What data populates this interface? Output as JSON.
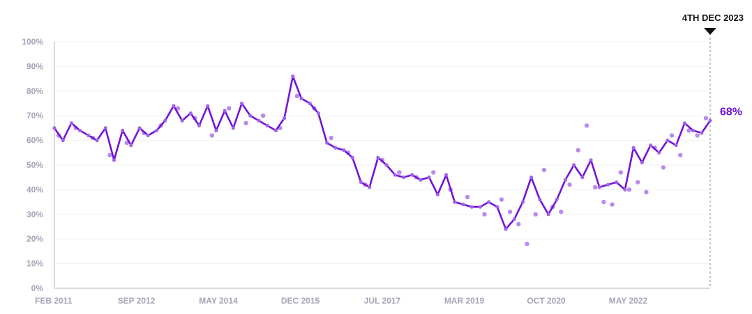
{
  "chart_data": {
    "type": "line",
    "title": "",
    "xlabel": "",
    "ylabel": "",
    "x_ticks": [
      "FEB 2011",
      "SEP 2012",
      "MAY 2014",
      "DEC 2015",
      "JUL 2017",
      "MAR 2019",
      "OCT 2020",
      "MAY 2022"
    ],
    "y_ticks": [
      "0%",
      "10%",
      "20%",
      "30%",
      "40%",
      "50%",
      "60%",
      "70%",
      "80%",
      "90%",
      "100%"
    ],
    "xlim": [
      "2011-02",
      "2023-12"
    ],
    "ylim": [
      0,
      100
    ],
    "grid": true,
    "marker": {
      "label": "4TH DEC 2023",
      "date": "2023-12"
    },
    "end_label": "68%",
    "colors": {
      "line": "#7312d9",
      "points": "#a064e6",
      "axis_text": "#a7a3b8"
    },
    "series": [
      {
        "style": "line",
        "x": [
          "2011-02",
          "2011-04",
          "2011-06",
          "2011-08",
          "2011-10",
          "2011-12",
          "2012-02",
          "2012-04",
          "2012-06",
          "2012-08",
          "2012-10",
          "2012-12",
          "2013-02",
          "2013-04",
          "2013-06",
          "2013-08",
          "2013-10",
          "2013-12",
          "2014-02",
          "2014-04",
          "2014-06",
          "2014-08",
          "2014-10",
          "2014-12",
          "2015-02",
          "2015-04",
          "2015-06",
          "2015-08",
          "2015-10",
          "2015-12",
          "2016-02",
          "2016-04",
          "2016-06",
          "2016-08",
          "2016-10",
          "2016-12",
          "2017-02",
          "2017-04",
          "2017-06",
          "2017-08",
          "2017-10",
          "2017-12",
          "2018-02",
          "2018-04",
          "2018-06",
          "2018-08",
          "2018-10",
          "2018-12",
          "2019-02",
          "2019-04",
          "2019-06",
          "2019-08",
          "2019-10",
          "2019-12",
          "2020-02",
          "2020-04",
          "2020-06",
          "2020-08",
          "2020-10",
          "2020-12",
          "2021-02",
          "2021-04",
          "2021-06",
          "2021-08",
          "2021-10",
          "2021-12",
          "2022-02",
          "2022-04",
          "2022-06",
          "2022-08",
          "2022-10",
          "2022-12",
          "2023-02",
          "2023-04",
          "2023-06",
          "2023-08",
          "2023-10",
          "2023-12"
        ],
        "y": [
          65,
          60,
          67,
          64,
          62,
          60,
          65,
          52,
          64,
          58,
          65,
          62,
          64,
          68,
          74,
          68,
          71,
          66,
          74,
          64,
          72,
          65,
          75,
          70,
          68,
          66,
          64,
          69,
          86,
          77,
          75,
          71,
          59,
          57,
          56,
          53,
          43,
          41,
          53,
          50,
          46,
          45,
          46,
          44,
          45,
          38,
          46,
          35,
          34,
          33,
          33,
          35,
          33,
          24,
          28,
          35,
          45,
          36,
          30,
          36,
          44,
          50,
          45,
          52,
          41,
          42,
          43,
          40,
          57,
          51,
          58,
          55,
          60,
          58,
          67,
          64,
          63,
          68
        ]
      },
      {
        "style": "scatter",
        "x": [
          "2011-03",
          "2011-07",
          "2011-11",
          "2012-03",
          "2012-07",
          "2012-11",
          "2013-03",
          "2013-07",
          "2013-11",
          "2014-03",
          "2014-07",
          "2014-11",
          "2015-03",
          "2015-07",
          "2015-11",
          "2016-03",
          "2016-07",
          "2016-11",
          "2017-03",
          "2017-07",
          "2017-11",
          "2018-03",
          "2018-07",
          "2018-11",
          "2019-03",
          "2019-07",
          "2019-11",
          "2020-01",
          "2020-03",
          "2020-05",
          "2020-07",
          "2020-09",
          "2020-11",
          "2021-01",
          "2021-03",
          "2021-05",
          "2021-07",
          "2021-09",
          "2021-11",
          "2022-01",
          "2022-03",
          "2022-05",
          "2022-07",
          "2022-09",
          "2022-11",
          "2023-01",
          "2023-03",
          "2023-05",
          "2023-07",
          "2023-09",
          "2023-11"
        ],
        "y": [
          62,
          65,
          61,
          54,
          59,
          63,
          66,
          73,
          69,
          62,
          73,
          67,
          70,
          65,
          78,
          73,
          61,
          55,
          42,
          52,
          47,
          45,
          47,
          40,
          37,
          30,
          36,
          31,
          26,
          18,
          30,
          48,
          33,
          31,
          42,
          56,
          66,
          41,
          35,
          34,
          47,
          40,
          43,
          39,
          57,
          49,
          62,
          54,
          64,
          62,
          69
        ]
      }
    ]
  }
}
